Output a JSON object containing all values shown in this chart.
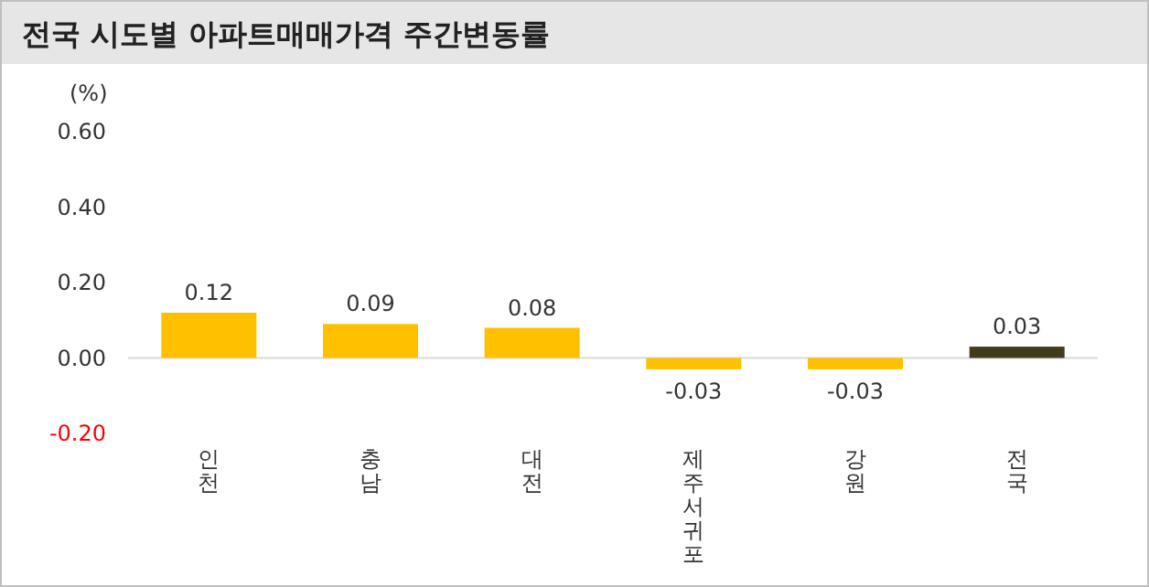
{
  "chart_data": {
    "type": "bar",
    "title": "전국 시도별 아파트매매가격 주간변동률",
    "ylabel": "(%)",
    "categories": [
      "인천",
      "충남",
      "대전",
      "제주서귀포",
      "강원",
      "전국"
    ],
    "values": [
      0.12,
      0.09,
      0.08,
      -0.03,
      -0.03,
      0.03
    ],
    "colors": [
      "#ffc000",
      "#ffc000",
      "#ffc000",
      "#ffc000",
      "#ffc000",
      "#403c1c"
    ],
    "value_labels": [
      "0.12",
      "0.09",
      "0.08",
      "-0.03",
      "-0.03",
      "0.03"
    ],
    "ylim": [
      -0.2,
      0.6
    ],
    "yticks": [
      {
        "value": -0.2,
        "label": "-0.20"
      },
      {
        "value": 0,
        "label": "0.00"
      },
      {
        "value": 0.2,
        "label": "0.20"
      },
      {
        "value": 0.4,
        "label": "0.40"
      },
      {
        "value": 0.6,
        "label": "0.60"
      }
    ]
  }
}
